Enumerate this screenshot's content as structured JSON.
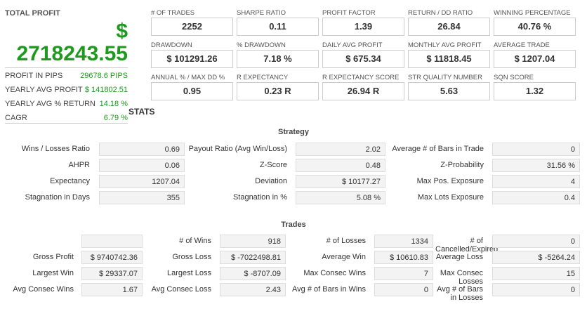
{
  "summary": {
    "total_profit_label": "TOTAL PROFIT",
    "currency_symbol": "$",
    "total_profit": "2718243.55",
    "rows": [
      {
        "label": "PROFIT IN PIPS",
        "value": "29678.6 PIPS"
      },
      {
        "label": "YEARLY AVG PROFIT",
        "value": "$ 141802.51"
      },
      {
        "label": "YEARLY AVG % RETURN",
        "value": "14.18 %"
      },
      {
        "label": "CAGR",
        "value": "6.79 %"
      }
    ]
  },
  "metrics": [
    [
      {
        "label": "# OF TRADES",
        "value": "2252"
      },
      {
        "label": "SHARPE RATIO",
        "value": "0.11"
      },
      {
        "label": "PROFIT FACTOR",
        "value": "1.39"
      },
      {
        "label": "RETURN / DD RATIO",
        "value": "26.84"
      },
      {
        "label": "WINNING PERCENTAGE",
        "value": "40.76 %"
      }
    ],
    [
      {
        "label": "DRAWDOWN",
        "value": "$ 101291.26"
      },
      {
        "label": "% DRAWDOWN",
        "value": "7.18 %"
      },
      {
        "label": "DAILY AVG PROFIT",
        "value": "$ 675.34"
      },
      {
        "label": "MONTHLY AVG PROFIT",
        "value": "$ 11818.45"
      },
      {
        "label": "AVERAGE TRADE",
        "value": "$ 1207.04"
      }
    ],
    [
      {
        "label": "ANNUAL % / MAX DD %",
        "value": "0.95"
      },
      {
        "label": "R EXPECTANCY",
        "value": "0.23 R"
      },
      {
        "label": "R EXPECTANCY SCORE",
        "value": "26.94 R"
      },
      {
        "label": "STR QUALITY NUMBER",
        "value": "5.63"
      },
      {
        "label": "SQN SCORE",
        "value": "1.32"
      }
    ]
  ],
  "stats_title": "STATS",
  "strategy": {
    "title": "Strategy",
    "rows": [
      [
        {
          "label": "Wins / Losses Ratio",
          "value": "0.69"
        },
        {
          "label": "Payout Ratio (Avg Win/Loss)",
          "value": "2.02"
        },
        {
          "label": "Average # of Bars in Trade",
          "value": "0"
        }
      ],
      [
        {
          "label": "AHPR",
          "value": "0.06"
        },
        {
          "label": "Z-Score",
          "value": "0.48"
        },
        {
          "label": "Z-Probability",
          "value": "31.56 %"
        }
      ],
      [
        {
          "label": "Expectancy",
          "value": "1207.04"
        },
        {
          "label": "Deviation",
          "value": "$ 10177.27"
        },
        {
          "label": "Max Pos. Exposure",
          "value": "4"
        }
      ],
      [
        {
          "label": "Stagnation in Days",
          "value": "355"
        },
        {
          "label": "Stagnation in %",
          "value": "5.08 %"
        },
        {
          "label": "Max Lots Exposure",
          "value": "0.4"
        }
      ]
    ]
  },
  "trades": {
    "title": "Trades",
    "rows": [
      [
        {
          "label": "",
          "value": ""
        },
        {
          "label": "# of Wins",
          "value": "918"
        },
        {
          "label": "# of Losses",
          "value": "1334"
        },
        {
          "label": "# of Cancelled/Expired",
          "value": "0"
        }
      ],
      [
        {
          "label": "Gross Profit",
          "value": "$ 9740742.36"
        },
        {
          "label": "Gross Loss",
          "value": "$ -7022498.81"
        },
        {
          "label": "Average Win",
          "value": "$ 10610.83"
        },
        {
          "label": "Average Loss",
          "value": "$ -5264.24"
        }
      ],
      [
        {
          "label": "Largest Win",
          "value": "$ 29337.07"
        },
        {
          "label": "Largest Loss",
          "value": "$ -8707.09"
        },
        {
          "label": "Max Consec Wins",
          "value": "7"
        },
        {
          "label": "Max Consec Losses",
          "value": "15"
        }
      ],
      [
        {
          "label": "Avg Consec Wins",
          "value": "1.67"
        },
        {
          "label": "Avg Consec Loss",
          "value": "2.43"
        },
        {
          "label": "Avg # of Bars in Wins",
          "value": "0"
        },
        {
          "label": "Avg # of Bars in Losses",
          "value": "0"
        }
      ]
    ]
  }
}
